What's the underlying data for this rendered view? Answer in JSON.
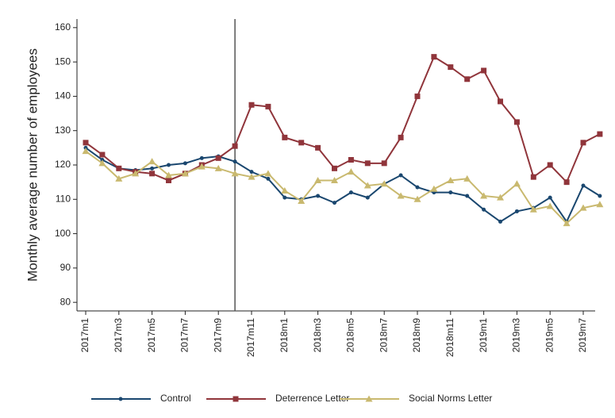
{
  "chart_data": {
    "type": "line",
    "y_label": "Monthly average number of employees",
    "categories": [
      "2017m1",
      null,
      "2017m3",
      null,
      "2017m5",
      null,
      "2017m7",
      null,
      "2017m9",
      null,
      "2017m11",
      null,
      "2018m1",
      null,
      "2018m3",
      null,
      "2018m5",
      null,
      "2018m7",
      null,
      "2018m9",
      null,
      "2018m11",
      null,
      "2019m1",
      null,
      "2019m3",
      null,
      "2019m5",
      null,
      "2019m7",
      null
    ],
    "series": [
      {
        "name": "Control",
        "color": "#1a476f",
        "marker": "circle",
        "values": [
          125,
          121.5,
          119,
          118.5,
          119,
          120,
          120.5,
          122,
          122.5,
          121,
          118,
          116,
          110.5,
          110,
          111,
          109,
          112,
          110.5,
          114.5,
          117,
          113.5,
          112,
          112,
          111,
          107,
          103.5,
          106.5,
          107.5,
          110.5,
          103.5,
          114,
          111
        ]
      },
      {
        "name": "Deterrence Letter",
        "color": "#90353b",
        "marker": "square",
        "values": [
          126.5,
          123,
          119,
          118,
          117.5,
          115.5,
          117.5,
          120,
          122,
          125.5,
          137.5,
          137,
          128,
          126.5,
          125,
          119,
          121.5,
          120.5,
          120.5,
          128,
          140,
          151.5,
          148.5,
          145,
          147.5,
          138.5,
          132.5,
          116.5,
          120,
          115,
          126.5,
          129
        ]
      },
      {
        "name": "Social Norms Letter",
        "color": "#c9b96f",
        "marker": "triangle",
        "values": [
          124,
          120.5,
          116,
          117.5,
          121,
          117,
          117.5,
          119.5,
          119,
          117.5,
          116.5,
          117.5,
          112.5,
          109.5,
          115.5,
          115.5,
          118,
          114,
          114.5,
          111,
          110,
          113,
          115.5,
          116,
          111,
          110.5,
          114.5,
          107,
          108,
          103,
          107.5,
          108.5
        ]
      }
    ],
    "ylim": [
      77.5,
      162.5
    ],
    "yticks": [
      80,
      90,
      100,
      110,
      120,
      130,
      140,
      150,
      160
    ],
    "vline_at": 9,
    "grid": false,
    "legend": "bottom"
  }
}
